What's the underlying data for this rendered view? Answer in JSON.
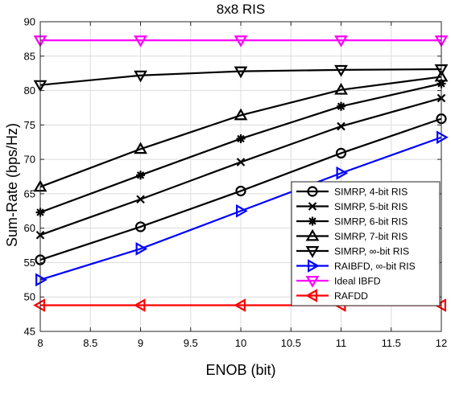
{
  "chart_data": {
    "type": "line",
    "title": "8x8 RIS",
    "xlabel": "ENOB (bit)",
    "ylabel": "Sum-Rate (bps/Hz)",
    "xlim": [
      8,
      12
    ],
    "ylim": [
      45,
      90
    ],
    "xticks": [
      8,
      8.5,
      9,
      9.5,
      10,
      10.5,
      11,
      11.5,
      12
    ],
    "xtick_labels": [
      "8",
      "8.5",
      "9",
      "9.5",
      "10",
      "10.5",
      "11",
      "11.5",
      "12"
    ],
    "yticks": [
      45,
      50,
      55,
      60,
      65,
      70,
      75,
      80,
      85,
      90
    ],
    "ytick_labels": [
      "45",
      "50",
      "55",
      "60",
      "65",
      "70",
      "75",
      "80",
      "85",
      "90"
    ],
    "grid": true,
    "legend_position": "lower-right",
    "x": [
      8,
      9,
      10,
      11,
      12
    ],
    "series": [
      {
        "name": "SIMRP, 4-bit RIS",
        "values": [
          55.4,
          60.2,
          65.4,
          70.9,
          75.9
        ],
        "color": "#000000",
        "marker": "circle"
      },
      {
        "name": "SIMRP, 5-bit RIS",
        "values": [
          59.0,
          64.2,
          69.6,
          74.8,
          78.9
        ],
        "color": "#000000",
        "marker": "x"
      },
      {
        "name": "SIMRP, 6-bit RIS",
        "values": [
          62.3,
          67.7,
          73.0,
          77.7,
          81.0
        ],
        "color": "#000000",
        "marker": "asterisk"
      },
      {
        "name": "SIMRP, 7-bit RIS",
        "values": [
          66.0,
          71.5,
          76.4,
          80.1,
          82.0
        ],
        "color": "#000000",
        "marker": "triangle-up"
      },
      {
        "name": "SIMRP, ∞-bit RIS",
        "values": [
          80.8,
          82.2,
          82.8,
          83.0,
          83.1
        ],
        "color": "#000000",
        "marker": "triangle-down"
      },
      {
        "name": "RAIBFD, ∞-bit RIS",
        "values": [
          52.5,
          57.0,
          62.5,
          68.0,
          73.2
        ],
        "color": "#0000ff",
        "marker": "triangle-right"
      },
      {
        "name": "Ideal IBFD",
        "values": [
          87.3,
          87.3,
          87.3,
          87.3,
          87.3
        ],
        "color": "#ff00ff",
        "marker": "triangle-down"
      },
      {
        "name": "RAFDD",
        "values": [
          48.8,
          48.8,
          48.8,
          48.8,
          48.8
        ],
        "color": "#ff0000",
        "marker": "triangle-left"
      }
    ]
  }
}
